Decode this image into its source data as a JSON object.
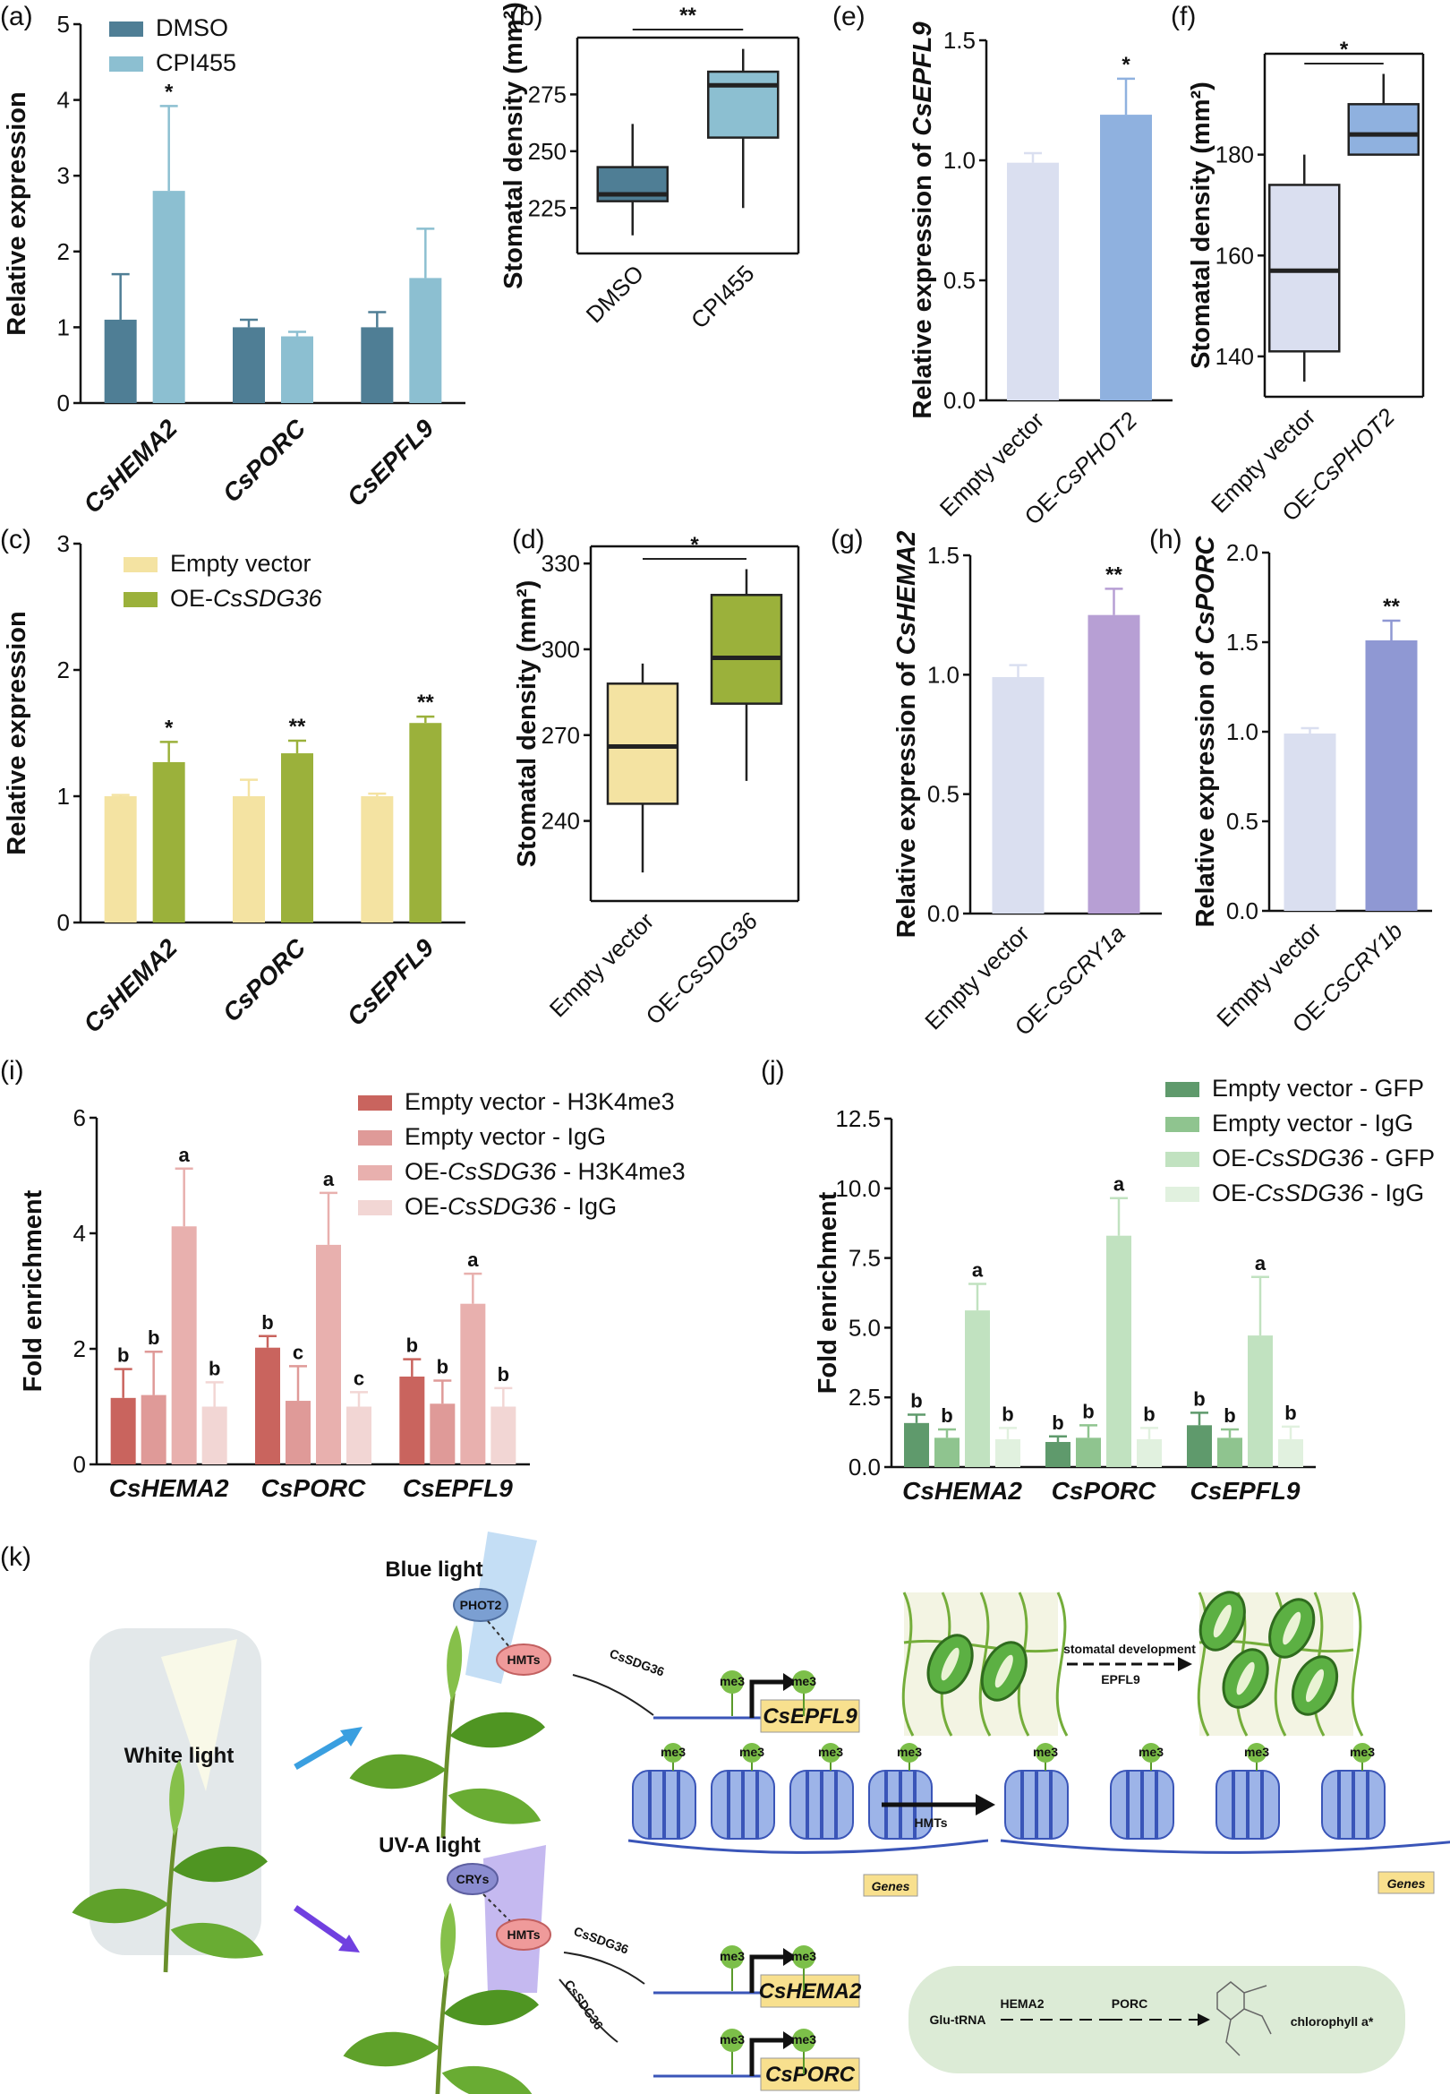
{
  "panels": {
    "a": "(a)",
    "b": "(b)",
    "c": "(c)",
    "d": "(d)",
    "e": "(e)",
    "f": "(f)",
    "g": "(g)",
    "h": "(h)",
    "i": "(i)",
    "j": "(j)",
    "k": "(k)"
  },
  "colors": {
    "dmso": "#4f7e95",
    "cpi455": "#8cbfd1",
    "ev_yellow": "#f4e3a2",
    "oe_green": "#9bb13b",
    "bar_pale": "#dadff0",
    "phot2_blue": "#8fb1df",
    "cry1a_purple": "#b79fd4",
    "cry1b_blue": "#8f98d3",
    "i_s1": "#c9645e",
    "i_s2": "#df9a98",
    "i_s3": "#e8b0ae",
    "i_s4": "#f2d6d4",
    "j_s1": "#5f9a6c",
    "j_s2": "#8fc48f",
    "j_s3": "#c1e2c0",
    "j_s4": "#e1f1df"
  },
  "chart_data": [
    {
      "id": "a",
      "type": "bar",
      "categories": [
        "CsHEMA2",
        "CsPORC",
        "CsEPFL9"
      ],
      "series": [
        {
          "name": "DMSO",
          "values": [
            1.1,
            1.0,
            1.0
          ],
          "errors": [
            0.6,
            0.1,
            0.2
          ]
        },
        {
          "name": "CPI455",
          "values": [
            2.8,
            0.88,
            1.65
          ],
          "errors": [
            1.12,
            0.06,
            0.65
          ]
        }
      ],
      "significance": [
        "*",
        "",
        ""
      ],
      "ylabel": "Relative expression",
      "ylim": [
        0,
        5
      ],
      "yticks": [
        0,
        1,
        2,
        3,
        4,
        5
      ]
    },
    {
      "id": "b",
      "type": "boxplot",
      "categories": [
        "DMSO",
        "CPI455"
      ],
      "boxes": [
        {
          "min": 213,
          "q1": 228,
          "median": 231,
          "q3": 243,
          "max": 262
        },
        {
          "min": 225,
          "q1": 256,
          "median": 279,
          "q3": 285,
          "max": 295
        }
      ],
      "significance": "**",
      "ylabel": "Stomatal density (mm²)",
      "ylim": [
        205,
        300
      ],
      "yticks": [
        225,
        250,
        275
      ]
    },
    {
      "id": "c",
      "type": "bar",
      "categories": [
        "CsHEMA2",
        "CsPORC",
        "CsEPFL9"
      ],
      "series": [
        {
          "name": "Empty vector",
          "values": [
            1.0,
            1.0,
            1.0
          ],
          "errors": [
            0.01,
            0.13,
            0.02
          ]
        },
        {
          "name": "OE-CsSDG36",
          "values": [
            1.27,
            1.34,
            1.58
          ],
          "errors": [
            0.16,
            0.1,
            0.05
          ]
        }
      ],
      "significance": [
        "*",
        "**",
        "**"
      ],
      "ylabel": "Relative expression",
      "ylim": [
        0,
        3
      ],
      "yticks": [
        0,
        1,
        2,
        3
      ]
    },
    {
      "id": "d",
      "type": "boxplot",
      "categories": [
        "Empty vector",
        "OE-CsSDG36"
      ],
      "boxes": [
        {
          "min": 222,
          "q1": 246,
          "median": 266,
          "q3": 288,
          "max": 295
        },
        {
          "min": 254,
          "q1": 281,
          "median": 297,
          "q3": 319,
          "max": 328
        }
      ],
      "significance": "*",
      "ylabel": "Stomatal density (mm²)",
      "ylim": [
        212,
        336
      ],
      "yticks": [
        240,
        270,
        300,
        330
      ]
    },
    {
      "id": "e",
      "type": "bar",
      "categories": [
        "Empty vector",
        "OE-CsPHOT2"
      ],
      "values": [
        0.99,
        1.19
      ],
      "errors": [
        0.04,
        0.15
      ],
      "significance": [
        "",
        "*"
      ],
      "ylabel": "Relative expression of CsEPFL9",
      "ylim": [
        0,
        1.5
      ],
      "yticks": [
        0.0,
        0.5,
        1.0,
        1.5
      ]
    },
    {
      "id": "f",
      "type": "boxplot",
      "categories": [
        "Empty vector",
        "OE-CsPHOT2"
      ],
      "boxes": [
        {
          "min": 135,
          "q1": 141,
          "median": 157,
          "q3": 174,
          "max": 180
        },
        {
          "min": 180,
          "q1": 180,
          "median": 184,
          "q3": 190,
          "max": 196
        }
      ],
      "significance": "*",
      "ylabel": "Stomatal density (mm²)",
      "ylim": [
        132,
        200
      ],
      "yticks": [
        140,
        160,
        180
      ]
    },
    {
      "id": "g",
      "type": "bar",
      "categories": [
        "Empty vector",
        "OE-CsCRY1a"
      ],
      "values": [
        0.99,
        1.25
      ],
      "errors": [
        0.05,
        0.11
      ],
      "significance": [
        "",
        "**"
      ],
      "ylabel": "Relative expression of CsHEMA2",
      "ylim": [
        0,
        1.5
      ],
      "yticks": [
        0.0,
        0.5,
        1.0,
        1.5
      ]
    },
    {
      "id": "h",
      "type": "bar",
      "categories": [
        "Empty vector",
        "OE-CsCRY1b"
      ],
      "values": [
        0.99,
        1.51
      ],
      "errors": [
        0.03,
        0.11
      ],
      "significance": [
        "",
        "**"
      ],
      "ylabel": "Relative expression of CsPORC",
      "ylim": [
        0,
        2.0
      ],
      "yticks": [
        0.0,
        0.5,
        1.0,
        1.5,
        2.0
      ]
    },
    {
      "id": "i",
      "type": "bar",
      "categories": [
        "CsHEMA2",
        "CsPORC",
        "CsEPFL9"
      ],
      "series": [
        {
          "name": "Empty vector - H3K4me3",
          "values": [
            1.15,
            2.02,
            1.52
          ],
          "errors": [
            0.5,
            0.2,
            0.3
          ],
          "letters": [
            "b",
            "b",
            "b"
          ]
        },
        {
          "name": "Empty vector - IgG",
          "values": [
            1.2,
            1.1,
            1.05
          ],
          "errors": [
            0.75,
            0.6,
            0.4
          ],
          "letters": [
            "b",
            "c",
            "b"
          ]
        },
        {
          "name": "OE-CsSDG36 - H3K4me3",
          "values": [
            4.12,
            3.8,
            2.78
          ],
          "errors": [
            1.0,
            0.9,
            0.52
          ],
          "letters": [
            "a",
            "a",
            "a"
          ]
        },
        {
          "name": "OE-CsSDG36 - IgG",
          "values": [
            1.0,
            1.0,
            1.0
          ],
          "errors": [
            0.42,
            0.25,
            0.32
          ],
          "letters": [
            "b",
            "c",
            "b"
          ]
        }
      ],
      "ylabel": "Fold enrichment",
      "ylim": [
        0,
        6
      ],
      "yticks": [
        0,
        2,
        4,
        6
      ]
    },
    {
      "id": "j",
      "type": "bar",
      "categories": [
        "CsHEMA2",
        "CsPORC",
        "CsEPFL9"
      ],
      "series": [
        {
          "name": "Empty vector - GFP",
          "values": [
            1.58,
            0.9,
            1.5
          ],
          "errors": [
            0.3,
            0.2,
            0.45
          ],
          "letters": [
            "b",
            "b",
            "b"
          ]
        },
        {
          "name": "Empty vector - IgG",
          "values": [
            1.05,
            1.05,
            1.05
          ],
          "errors": [
            0.3,
            0.45,
            0.3
          ],
          "letters": [
            "b",
            "b",
            "b"
          ]
        },
        {
          "name": "OE-CsSDG36 - GFP",
          "values": [
            5.62,
            8.3,
            4.72
          ],
          "errors": [
            0.95,
            1.35,
            2.1
          ],
          "letters": [
            "a",
            "a",
            "a"
          ]
        },
        {
          "name": "OE-CsSDG36 - IgG",
          "values": [
            1.0,
            1.0,
            1.0
          ],
          "errors": [
            0.4,
            0.4,
            0.45
          ],
          "letters": [
            "b",
            "b",
            "b"
          ]
        }
      ],
      "ylabel": "Fold enrichment",
      "ylim": [
        0,
        12.5
      ],
      "yticks": [
        0.0,
        2.5,
        5.0,
        7.5,
        10.0,
        12.5
      ]
    }
  ],
  "diagram": {
    "white_light": "White light",
    "blue_light": "Blue light",
    "uva_light": "UV-A light",
    "phot2": "PHOT2",
    "crys": "CRYs",
    "hmts": "HMTs",
    "cssdg36": "CsSDG36",
    "me3": "me3",
    "cs_epfl9": "CsEPFL9",
    "cs_hema2": "CsHEMA2",
    "cs_porc": "CsPORC",
    "stomatal_dev": "stomatal development",
    "epfl9": "EPFL9",
    "genes": "Genes",
    "hmts_arrow": "HMTs",
    "glu_trna": "Glu-tRNA",
    "hema2": "HEMA2",
    "porc": "PORC",
    "chlorophyll": "chlorophyll a*"
  }
}
